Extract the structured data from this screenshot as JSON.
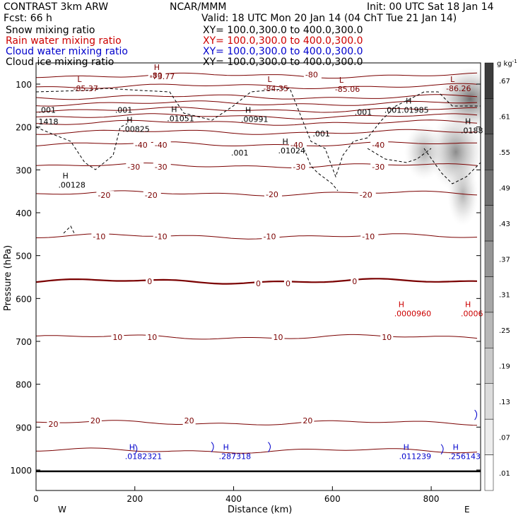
{
  "header": {
    "model": "CONTRAST  3km ARW",
    "org": "NCAR/MMM",
    "init": "Init: 00 UTC Sat 18 Jan 14",
    "fcst": "Fcst:   66 h",
    "valid": "Valid: 18 UTC Mon 20 Jan 14 (04 ChT Tue 21 Jan 14)",
    "fields": [
      {
        "name": "Snow mixing ratio",
        "xy": "XY= 100.0,300.0 to 400.0,300.0",
        "color": "#000000"
      },
      {
        "name": "Rain water mixing ratio",
        "xy": "XY= 100.0,300.0 to 400.0,300.0",
        "color": "#cc0000"
      },
      {
        "name": "Cloud water mixing ratio",
        "xy": "XY= 100.0,300.0 to 400.0,300.0",
        "color": "#0000cc"
      },
      {
        "name": "Cloud ice mixing ratio",
        "xy": "XY= 100.0,300.0 to 400.0,300.0",
        "color": "#000000"
      }
    ]
  },
  "chart_data": {
    "type": "contour-cross-section",
    "xlabel": "Distance (km)",
    "ylabel": "Pressure (hPa)",
    "xlim": [
      0,
      900
    ],
    "ylim": [
      1040,
      50
    ],
    "x_ticks": [
      0,
      200,
      400,
      600,
      800
    ],
    "y_ticks": [
      100,
      200,
      300,
      400,
      500,
      600,
      700,
      800,
      900,
      1000
    ],
    "x_end_labels": {
      "left": "W",
      "right": "E"
    },
    "colorbar": {
      "unit": "g kg",
      "unit_sup": "-1",
      "ticks": [
        ".67",
        ".61",
        ".55",
        ".49",
        ".43",
        ".37",
        ".31",
        ".25",
        ".19",
        ".13",
        ".07",
        ".01"
      ]
    },
    "temperature_contours": [
      {
        "p": 80,
        "label": "-80"
      },
      {
        "p": 105,
        "label": ""
      },
      {
        "p": 130,
        "label": ""
      },
      {
        "p": 145,
        "label": ""
      },
      {
        "p": 160,
        "label": ""
      },
      {
        "p": 175,
        "label": ""
      },
      {
        "p": 190,
        "label": ""
      },
      {
        "p": 212,
        "label": ""
      },
      {
        "p": 240,
        "label": "-40"
      },
      {
        "p": 290,
        "label": "-30"
      },
      {
        "p": 355,
        "label": "-20"
      },
      {
        "p": 455,
        "label": "-10"
      },
      {
        "p": 560,
        "label": "0"
      },
      {
        "p": 690,
        "label": "10"
      },
      {
        "p": 890,
        "label": "20"
      },
      {
        "p": 955,
        "label": ""
      }
    ],
    "temp_labels": [
      {
        "x": 230,
        "p": 79,
        "text": "-80"
      },
      {
        "x": 545,
        "p": 78,
        "text": "-80"
      },
      {
        "x": 200,
        "p": 242,
        "text": "-40"
      },
      {
        "x": 240,
        "p": 242,
        "text": "-40"
      },
      {
        "x": 515,
        "p": 242,
        "text": "-40"
      },
      {
        "x": 680,
        "p": 242,
        "text": "-40"
      },
      {
        "x": 185,
        "p": 293,
        "text": "-30"
      },
      {
        "x": 240,
        "p": 293,
        "text": "-30"
      },
      {
        "x": 520,
        "p": 293,
        "text": "-30"
      },
      {
        "x": 680,
        "p": 293,
        "text": "-30"
      },
      {
        "x": 125,
        "p": 359,
        "text": "-20"
      },
      {
        "x": 220,
        "p": 359,
        "text": "-20"
      },
      {
        "x": 465,
        "p": 357,
        "text": "-20"
      },
      {
        "x": 655,
        "p": 358,
        "text": "-20"
      },
      {
        "x": 115,
        "p": 455,
        "text": "-10"
      },
      {
        "x": 240,
        "p": 455,
        "text": "-10"
      },
      {
        "x": 460,
        "p": 455,
        "text": "-10"
      },
      {
        "x": 660,
        "p": 455,
        "text": "-10"
      },
      {
        "x": 225,
        "p": 560,
        "text": "0"
      },
      {
        "x": 445,
        "p": 565,
        "text": "0"
      },
      {
        "x": 505,
        "p": 565,
        "text": "0"
      },
      {
        "x": 640,
        "p": 560,
        "text": "0"
      },
      {
        "x": 155,
        "p": 690,
        "text": "10"
      },
      {
        "x": 225,
        "p": 690,
        "text": "10"
      },
      {
        "x": 480,
        "p": 690,
        "text": "10"
      },
      {
        "x": 700,
        "p": 690,
        "text": "10"
      },
      {
        "x": 25,
        "p": 893,
        "text": "20"
      },
      {
        "x": 110,
        "p": 885,
        "text": "20"
      },
      {
        "x": 300,
        "p": 885,
        "text": "20"
      },
      {
        "x": 540,
        "p": 885,
        "text": "20"
      }
    ],
    "extrema": [
      {
        "x": 75,
        "p": 100,
        "sym": "L",
        "value": "-85.37",
        "color": "#7a0000"
      },
      {
        "x": 230,
        "p": 72,
        "sym": "H",
        "value": "-73.77",
        "color": "#7a0000"
      },
      {
        "x": 460,
        "p": 100,
        "sym": "L",
        "value": "-84.35",
        "color": "#7a0000"
      },
      {
        "x": 605,
        "p": 102,
        "sym": "L",
        "value": "-85.06",
        "color": "#7a0000"
      },
      {
        "x": 830,
        "p": 100,
        "sym": "L",
        "value": "-86.26",
        "color": "#7a0000"
      },
      {
        "x": 5,
        "p": 160,
        "sym": "",
        "value": ".001",
        "color": "#000000"
      },
      {
        "x": 160,
        "p": 160,
        "sym": "",
        "value": ".001",
        "color": "#000000"
      },
      {
        "x": 645,
        "p": 165,
        "sym": "",
        "value": ".001",
        "color": "#000000"
      },
      {
        "x": 705,
        "p": 160,
        "sym": "",
        "value": ".001",
        "color": "#000000"
      },
      {
        "x": 395,
        "p": 260,
        "sym": "",
        "value": ".001",
        "color": "#000000"
      },
      {
        "x": 560,
        "p": 215,
        "sym": "",
        "value": ".001",
        "color": "#000000"
      },
      {
        "x": 265,
        "p": 170,
        "sym": "H",
        "value": ".01051",
        "color": "#000000"
      },
      {
        "x": 415,
        "p": 172,
        "sym": "H",
        "value": ".00991",
        "color": "#000000"
      },
      {
        "x": 740,
        "p": 150,
        "sym": "H",
        "value": ".01985",
        "color": "#000000"
      },
      {
        "x": 860,
        "p": 198,
        "sym": "H",
        "value": ".0188",
        "color": "#000000"
      },
      {
        "x": 175,
        "p": 195,
        "sym": "H",
        "value": ".00825",
        "color": "#000000"
      },
      {
        "x": 490,
        "p": 245,
        "sym": "H",
        "value": ".01024",
        "color": "#000000"
      },
      {
        "x": 5,
        "p": 187,
        "sym": "",
        "value": "1418",
        "color": "#000000"
      },
      {
        "x": 45,
        "p": 325,
        "sym": "H",
        "value": ".00128",
        "color": "#000000"
      },
      {
        "x": 725,
        "p": 625,
        "sym": "H",
        "value": ".0000960",
        "color": "#cc0000"
      },
      {
        "x": 860,
        "p": 625,
        "sym": "H",
        "value": ".0006",
        "color": "#cc0000"
      },
      {
        "x": 180,
        "p": 958,
        "sym": "H",
        "value": ".0182321",
        "color": "#0000cc"
      },
      {
        "x": 370,
        "p": 958,
        "sym": "H",
        "value": ".287318",
        "color": "#0000cc"
      },
      {
        "x": 735,
        "p": 958,
        "sym": "H",
        "value": ".011239",
        "color": "#0000cc"
      },
      {
        "x": 835,
        "p": 958,
        "sym": "H",
        "value": ".256143",
        "color": "#0000cc"
      }
    ]
  }
}
